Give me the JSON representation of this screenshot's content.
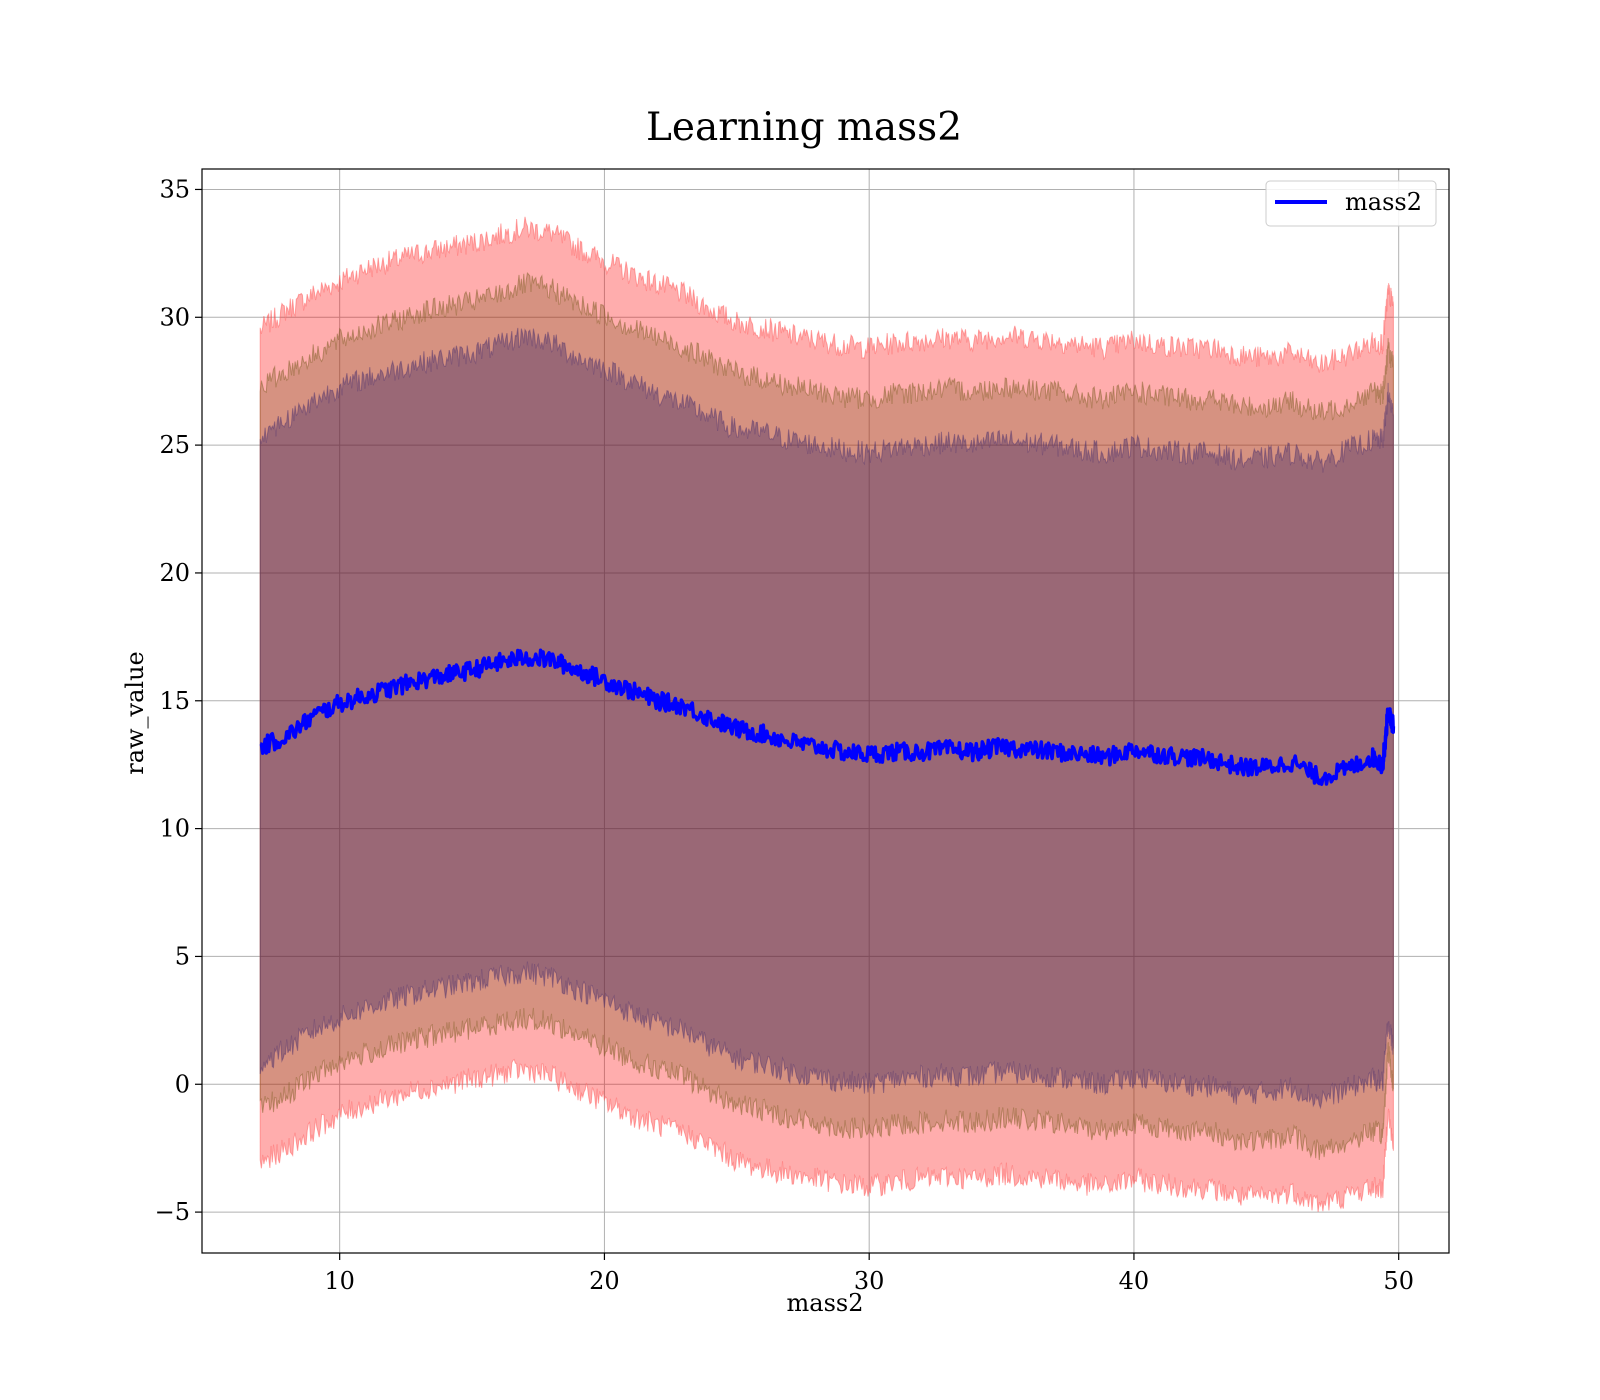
{
  "chart_data": {
    "type": "area",
    "title": "Learning mass2",
    "xlabel": "mass2",
    "ylabel": "raw_value",
    "xlim": [
      4.8,
      51.9
    ],
    "ylim": [
      -6.6,
      35.8
    ],
    "xticks": [
      10,
      20,
      30,
      40,
      50
    ],
    "yticks": [
      -5,
      0,
      5,
      10,
      15,
      20,
      25,
      30,
      35
    ],
    "grid": true,
    "legend": {
      "position": "top-right",
      "entries": [
        "mass2"
      ]
    },
    "colors": {
      "mean_line": "#0000ff",
      "band_fill": "#ff0000",
      "band_edge": "#ff6060",
      "band_tint": "#1b0f60"
    },
    "series": [
      {
        "name": "mass2",
        "x": [
          7.0,
          8.0,
          9.0,
          10.0,
          11.0,
          12.0,
          13.0,
          14.0,
          15.0,
          16.0,
          17.0,
          18.0,
          19.0,
          20.0,
          21.0,
          22.0,
          23.0,
          24.0,
          25.0,
          26.0,
          27.0,
          28.0,
          29.0,
          30.0,
          31.0,
          32.0,
          33.0,
          34.0,
          35.0,
          36.0,
          37.0,
          38.0,
          39.0,
          40.0,
          41.0,
          42.0,
          43.0,
          44.0,
          45.0,
          46.0,
          47.0,
          48.0,
          49.0,
          49.4,
          49.6,
          49.8
        ],
        "y": [
          13.2,
          13.6,
          14.4,
          14.9,
          15.2,
          15.5,
          15.8,
          16.0,
          16.2,
          16.5,
          16.7,
          16.6,
          16.2,
          15.8,
          15.4,
          15.0,
          14.8,
          14.3,
          13.9,
          13.7,
          13.4,
          13.2,
          13.0,
          12.9,
          13.0,
          13.0,
          13.1,
          13.0,
          13.2,
          13.1,
          13.0,
          12.9,
          12.8,
          13.1,
          12.9,
          12.8,
          12.7,
          12.4,
          12.4,
          12.6,
          12.0,
          12.3,
          12.8,
          12.5,
          14.6,
          14.0
        ],
        "band_1_upper": [
          27.3,
          27.9,
          28.5,
          29.1,
          29.5,
          29.8,
          30.2,
          30.4,
          30.6,
          30.9,
          31.3,
          31.1,
          30.5,
          30.1,
          29.6,
          29.2,
          28.8,
          28.3,
          27.8,
          27.6,
          27.3,
          27.1,
          26.9,
          26.8,
          27.0,
          27.1,
          27.2,
          27.1,
          27.3,
          27.2,
          27.1,
          26.9,
          26.8,
          27.1,
          26.9,
          26.8,
          26.8,
          26.5,
          26.5,
          26.7,
          26.2,
          26.6,
          27.1,
          27.0,
          28.8,
          28.1
        ],
        "band_1_lower": [
          -1.0,
          -0.4,
          0.3,
          0.9,
          1.2,
          1.5,
          1.8,
          2.0,
          2.2,
          2.4,
          2.6,
          2.4,
          1.9,
          1.5,
          1.0,
          0.6,
          0.3,
          -0.3,
          -0.8,
          -1.0,
          -1.3,
          -1.5,
          -1.7,
          -1.8,
          -1.6,
          -1.5,
          -1.4,
          -1.5,
          -1.3,
          -1.4,
          -1.5,
          -1.7,
          -1.8,
          -1.5,
          -1.7,
          -1.8,
          -1.9,
          -2.2,
          -2.2,
          -2.0,
          -2.6,
          -2.3,
          -1.8,
          -2.0,
          1.4,
          -0.2
        ],
        "band_2_upper": [
          29.5,
          30.3,
          30.9,
          31.4,
          31.9,
          32.2,
          32.5,
          32.7,
          32.9,
          33.2,
          33.5,
          33.3,
          32.7,
          32.2,
          31.7,
          31.3,
          30.9,
          30.3,
          29.8,
          29.6,
          29.3,
          29.1,
          28.9,
          28.8,
          29.0,
          29.1,
          29.2,
          29.1,
          29.3,
          29.2,
          29.1,
          28.9,
          28.8,
          29.1,
          28.9,
          28.8,
          28.8,
          28.5,
          28.4,
          28.6,
          28.1,
          28.5,
          29.0,
          29.0,
          31.0,
          30.5
        ],
        "band_2_lower": [
          -3.1,
          -2.5,
          -1.8,
          -1.2,
          -0.8,
          -0.5,
          -0.2,
          0.0,
          0.2,
          0.4,
          0.6,
          0.3,
          -0.2,
          -0.7,
          -1.2,
          -1.6,
          -1.9,
          -2.4,
          -3.0,
          -3.3,
          -3.5,
          -3.7,
          -3.9,
          -4.0,
          -3.8,
          -3.7,
          -3.6,
          -3.7,
          -3.5,
          -3.6,
          -3.7,
          -3.9,
          -4.0,
          -3.7,
          -3.9,
          -4.0,
          -4.1,
          -4.4,
          -4.4,
          -4.2,
          -4.7,
          -4.4,
          -4.0,
          -4.1,
          -1.0,
          -2.6
        ],
        "band_3_upper": [
          25.4,
          26.0,
          26.7,
          27.3,
          27.6,
          27.9,
          28.2,
          28.4,
          28.6,
          28.9,
          29.3,
          29.0,
          28.4,
          28.0,
          27.5,
          27.0,
          26.6,
          26.1,
          25.6,
          25.5,
          25.2,
          25.0,
          24.8,
          24.7,
          24.9,
          25.0,
          25.1,
          25.0,
          25.2,
          25.1,
          25.0,
          24.8,
          24.7,
          25.0,
          24.8,
          24.7,
          24.7,
          24.4,
          24.5,
          24.7,
          24.3,
          24.8,
          25.2,
          25.2,
          27.0,
          26.2
        ],
        "band_3_lower": [
          0.8,
          1.4,
          2.1,
          2.6,
          3.0,
          3.3,
          3.6,
          3.8,
          4.0,
          4.2,
          4.4,
          4.2,
          3.7,
          3.3,
          2.8,
          2.4,
          2.1,
          1.5,
          1.0,
          0.8,
          0.5,
          0.3,
          0.1,
          0.0,
          0.2,
          0.3,
          0.4,
          0.3,
          0.5,
          0.4,
          0.3,
          0.1,
          0.0,
          0.3,
          0.1,
          0.0,
          -0.1,
          -0.4,
          -0.3,
          -0.1,
          -0.6,
          -0.2,
          0.2,
          0.1,
          2.5,
          1.4
        ]
      }
    ]
  }
}
